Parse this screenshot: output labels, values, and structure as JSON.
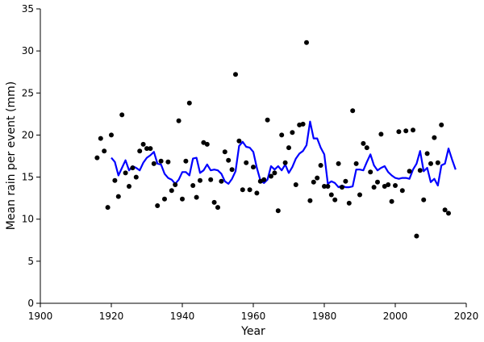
{
  "chart_data": {
    "type": "scatter",
    "title": "",
    "xlabel": "Year",
    "ylabel": "Mean rain per event (mm)",
    "xlim": [
      1900,
      2020
    ],
    "ylim": [
      0,
      35
    ],
    "xticks": [
      1900,
      1920,
      1940,
      1960,
      1980,
      2000,
      2020
    ],
    "yticks": [
      0,
      5,
      10,
      15,
      20,
      25,
      30,
      35
    ],
    "grid": false,
    "colors": {
      "points": "#000000",
      "line": "#0000ff",
      "axis": "#000000"
    },
    "series": [
      {
        "kind": "scatter",
        "points": [
          [
            1916,
            17.3
          ],
          [
            1917,
            19.6
          ],
          [
            1918,
            18.1
          ],
          [
            1919,
            11.4
          ],
          [
            1920,
            20.0
          ],
          [
            1921,
            14.6
          ],
          [
            1922,
            12.7
          ],
          [
            1923,
            22.4
          ],
          [
            1924,
            15.5
          ],
          [
            1925,
            13.9
          ],
          [
            1926,
            16.1
          ],
          [
            1927,
            15.0
          ],
          [
            1928,
            18.1
          ],
          [
            1929,
            18.9
          ],
          [
            1930,
            18.4
          ],
          [
            1931,
            18.4
          ],
          [
            1932,
            16.6
          ],
          [
            1933,
            11.6
          ],
          [
            1934,
            16.9
          ],
          [
            1935,
            12.4
          ],
          [
            1936,
            16.8
          ],
          [
            1937,
            13.4
          ],
          [
            1938,
            14.1
          ],
          [
            1939,
            21.7
          ],
          [
            1940,
            12.4
          ],
          [
            1941,
            16.9
          ],
          [
            1942,
            23.8
          ],
          [
            1943,
            14.0
          ],
          [
            1944,
            12.6
          ],
          [
            1945,
            14.6
          ],
          [
            1946,
            19.1
          ],
          [
            1947,
            18.9
          ],
          [
            1948,
            14.7
          ],
          [
            1949,
            12.0
          ],
          [
            1950,
            11.4
          ],
          [
            1951,
            14.5
          ],
          [
            1952,
            18.0
          ],
          [
            1953,
            17.0
          ],
          [
            1954,
            15.9
          ],
          [
            1955,
            27.2
          ],
          [
            1956,
            19.3
          ],
          [
            1957,
            13.5
          ],
          [
            1958,
            16.7
          ],
          [
            1959,
            13.5
          ],
          [
            1960,
            16.2
          ],
          [
            1961,
            13.1
          ],
          [
            1962,
            14.5
          ],
          [
            1963,
            14.7
          ],
          [
            1964,
            21.8
          ],
          [
            1965,
            15.1
          ],
          [
            1966,
            15.5
          ],
          [
            1967,
            11.0
          ],
          [
            1968,
            20.0
          ],
          [
            1969,
            16.7
          ],
          [
            1970,
            18.5
          ],
          [
            1971,
            20.3
          ],
          [
            1972,
            14.1
          ],
          [
            1973,
            21.2
          ],
          [
            1974,
            21.3
          ],
          [
            1975,
            31.0
          ],
          [
            1976,
            12.2
          ],
          [
            1977,
            14.4
          ],
          [
            1978,
            14.9
          ],
          [
            1979,
            16.4
          ],
          [
            1980,
            13.9
          ],
          [
            1981,
            13.9
          ],
          [
            1982,
            12.9
          ],
          [
            1983,
            12.3
          ],
          [
            1984,
            16.6
          ],
          [
            1985,
            13.8
          ],
          [
            1986,
            14.5
          ],
          [
            1987,
            11.9
          ],
          [
            1988,
            22.9
          ],
          [
            1989,
            16.6
          ],
          [
            1990,
            12.9
          ],
          [
            1991,
            19.0
          ],
          [
            1992,
            18.5
          ],
          [
            1993,
            15.6
          ],
          [
            1994,
            13.8
          ],
          [
            1995,
            14.4
          ],
          [
            1996,
            20.1
          ],
          [
            1997,
            13.9
          ],
          [
            1998,
            14.1
          ],
          [
            1999,
            12.1
          ],
          [
            2000,
            14.0
          ],
          [
            2001,
            20.4
          ],
          [
            2002,
            13.4
          ],
          [
            2003,
            20.5
          ],
          [
            2004,
            15.7
          ],
          [
            2005,
            20.6
          ],
          [
            2006,
            8.0
          ],
          [
            2007,
            15.8
          ],
          [
            2008,
            12.3
          ],
          [
            2009,
            17.8
          ],
          [
            2010,
            16.6
          ],
          [
            2011,
            19.7
          ],
          [
            2012,
            16.7
          ],
          [
            2013,
            21.2
          ],
          [
            2014,
            11.1
          ],
          [
            2015,
            10.7
          ]
        ]
      },
      {
        "kind": "line",
        "points": [
          [
            1920,
            17.3
          ],
          [
            1921,
            16.8
          ],
          [
            1922,
            15.2
          ],
          [
            1923,
            16.1
          ],
          [
            1924,
            17.0
          ],
          [
            1925,
            15.8
          ],
          [
            1926,
            16.3
          ],
          [
            1927,
            16.1
          ],
          [
            1928,
            15.8
          ],
          [
            1929,
            16.7
          ],
          [
            1930,
            17.3
          ],
          [
            1931,
            17.6
          ],
          [
            1932,
            18.0
          ],
          [
            1933,
            16.6
          ],
          [
            1934,
            16.5
          ],
          [
            1935,
            15.4
          ],
          [
            1936,
            14.9
          ],
          [
            1937,
            14.7
          ],
          [
            1938,
            14.2
          ],
          [
            1939,
            14.7
          ],
          [
            1940,
            15.6
          ],
          [
            1941,
            15.6
          ],
          [
            1942,
            15.2
          ],
          [
            1943,
            17.2
          ],
          [
            1944,
            17.3
          ],
          [
            1945,
            15.5
          ],
          [
            1946,
            15.8
          ],
          [
            1947,
            16.5
          ],
          [
            1948,
            15.8
          ],
          [
            1949,
            15.9
          ],
          [
            1950,
            15.8
          ],
          [
            1951,
            15.4
          ],
          [
            1952,
            14.5
          ],
          [
            1953,
            14.2
          ],
          [
            1954,
            14.8
          ],
          [
            1955,
            15.7
          ],
          [
            1956,
            18.7
          ],
          [
            1957,
            19.2
          ],
          [
            1958,
            18.6
          ],
          [
            1959,
            18.5
          ],
          [
            1960,
            18.0
          ],
          [
            1961,
            16.1
          ],
          [
            1962,
            14.6
          ],
          [
            1963,
            14.3
          ],
          [
            1964,
            14.7
          ],
          [
            1965,
            16.3
          ],
          [
            1966,
            15.9
          ],
          [
            1967,
            16.3
          ],
          [
            1968,
            15.8
          ],
          [
            1969,
            16.5
          ],
          [
            1970,
            15.5
          ],
          [
            1971,
            16.2
          ],
          [
            1972,
            17.2
          ],
          [
            1973,
            17.8
          ],
          [
            1974,
            18.1
          ],
          [
            1975,
            18.8
          ],
          [
            1976,
            21.6
          ],
          [
            1977,
            19.6
          ],
          [
            1978,
            19.6
          ],
          [
            1979,
            18.5
          ],
          [
            1980,
            17.7
          ],
          [
            1981,
            14.2
          ],
          [
            1982,
            14.5
          ],
          [
            1983,
            14.3
          ],
          [
            1984,
            13.8
          ],
          [
            1985,
            14.0
          ],
          [
            1986,
            13.8
          ],
          [
            1987,
            13.8
          ],
          [
            1988,
            13.9
          ],
          [
            1989,
            15.9
          ],
          [
            1990,
            15.9
          ],
          [
            1991,
            15.8
          ],
          [
            1992,
            16.8
          ],
          [
            1993,
            17.7
          ],
          [
            1994,
            16.4
          ],
          [
            1995,
            15.8
          ],
          [
            1996,
            16.1
          ],
          [
            1997,
            16.3
          ],
          [
            1998,
            15.6
          ],
          [
            1999,
            15.2
          ],
          [
            2000,
            14.9
          ],
          [
            2001,
            14.8
          ],
          [
            2002,
            14.9
          ],
          [
            2003,
            14.9
          ],
          [
            2004,
            14.8
          ],
          [
            2005,
            15.9
          ],
          [
            2006,
            16.6
          ],
          [
            2007,
            18.1
          ],
          [
            2008,
            15.7
          ],
          [
            2009,
            16.1
          ],
          [
            2010,
            14.4
          ],
          [
            2011,
            14.8
          ],
          [
            2012,
            14.0
          ],
          [
            2013,
            16.4
          ],
          [
            2014,
            16.6
          ],
          [
            2015,
            18.4
          ],
          [
            2016,
            17.1
          ],
          [
            2017,
            15.9
          ]
        ]
      }
    ]
  }
}
